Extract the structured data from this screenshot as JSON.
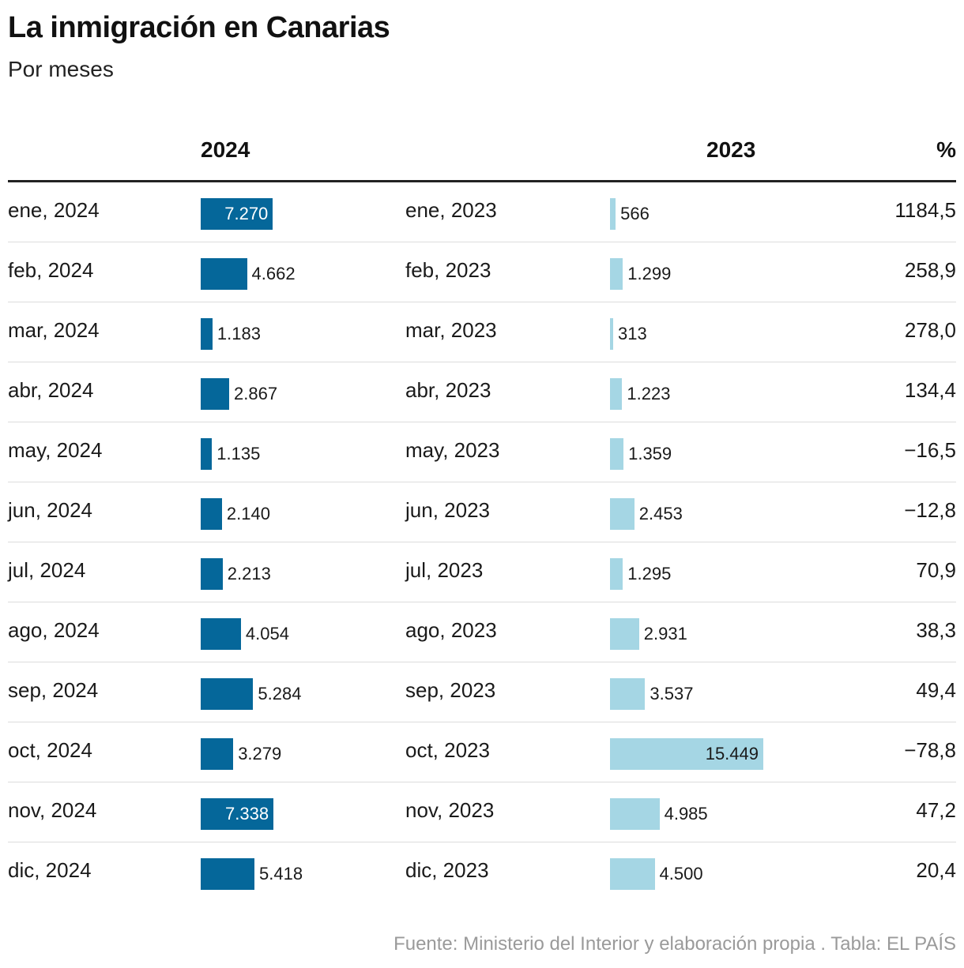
{
  "title": "La inmigración en Canarias",
  "subtitle": "Por meses",
  "source": "Fuente: Ministerio del Interior y elaboración propia . Tabla: EL PAÍS",
  "colors": {
    "bar_2024": "#05679a",
    "bar_2023": "#a5d6e4"
  },
  "chart_data": {
    "type": "table",
    "columns": [
      "",
      "2024",
      "",
      "2023",
      "%"
    ],
    "scale_max": 15449,
    "rows": [
      {
        "label_2024": "ene, 2024",
        "v2024": 7270,
        "t2024": "7.270",
        "label_2023": "ene, 2023",
        "v2023": 566,
        "t2023": "566",
        "pct": "1184,5"
      },
      {
        "label_2024": "feb, 2024",
        "v2024": 4662,
        "t2024": "4.662",
        "label_2023": "feb, 2023",
        "v2023": 1299,
        "t2023": "1.299",
        "pct": "258,9"
      },
      {
        "label_2024": "mar, 2024",
        "v2024": 1183,
        "t2024": "1.183",
        "label_2023": "mar, 2023",
        "v2023": 313,
        "t2023": "313",
        "pct": "278,0"
      },
      {
        "label_2024": "abr, 2024",
        "v2024": 2867,
        "t2024": "2.867",
        "label_2023": "abr, 2023",
        "v2023": 1223,
        "t2023": "1.223",
        "pct": "134,4"
      },
      {
        "label_2024": "may, 2024",
        "v2024": 1135,
        "t2024": "1.135",
        "label_2023": "may, 2023",
        "v2023": 1359,
        "t2023": "1.359",
        "pct": "−16,5"
      },
      {
        "label_2024": "jun, 2024",
        "v2024": 2140,
        "t2024": "2.140",
        "label_2023": "jun, 2023",
        "v2023": 2453,
        "t2023": "2.453",
        "pct": "−12,8"
      },
      {
        "label_2024": "jul, 2024",
        "v2024": 2213,
        "t2024": "2.213",
        "label_2023": "jul, 2023",
        "v2023": 1295,
        "t2023": "1.295",
        "pct": "70,9"
      },
      {
        "label_2024": "ago, 2024",
        "v2024": 4054,
        "t2024": "4.054",
        "label_2023": "ago, 2023",
        "v2023": 2931,
        "t2023": "2.931",
        "pct": "38,3"
      },
      {
        "label_2024": "sep, 2024",
        "v2024": 5284,
        "t2024": "5.284",
        "label_2023": "sep, 2023",
        "v2023": 3537,
        "t2023": "3.537",
        "pct": "49,4"
      },
      {
        "label_2024": "oct, 2024",
        "v2024": 3279,
        "t2024": "3.279",
        "label_2023": "oct, 2023",
        "v2023": 15449,
        "t2023": "15.449",
        "pct": "−78,8"
      },
      {
        "label_2024": "nov, 2024",
        "v2024": 7338,
        "t2024": "7.338",
        "label_2023": "nov, 2023",
        "v2023": 4985,
        "t2023": "4.985",
        "pct": "47,2"
      },
      {
        "label_2024": "dic, 2024",
        "v2024": 5418,
        "t2024": "5.418",
        "label_2023": "dic, 2023",
        "v2023": 4500,
        "t2023": "4.500",
        "pct": "20,4"
      }
    ]
  }
}
